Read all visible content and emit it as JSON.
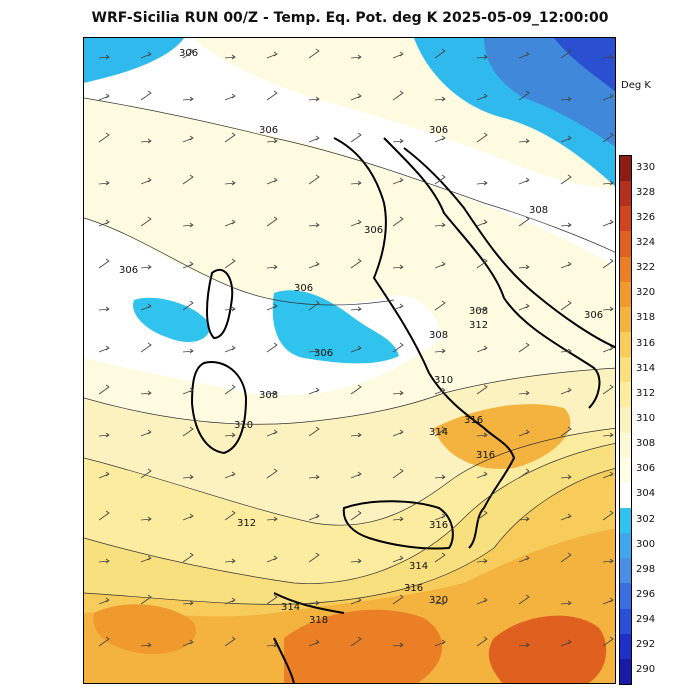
{
  "title": "WRF-Sicilia RUN 00/Z - Temp. Eq. Pot. deg K 2025-05-09_12:00:00",
  "colorbar": {
    "units": "Deg K",
    "ticks": [
      "290",
      "292",
      "294",
      "296",
      "298",
      "300",
      "302",
      "304",
      "306",
      "308",
      "310",
      "312",
      "314",
      "316",
      "318",
      "320",
      "322",
      "324",
      "326",
      "328",
      "330"
    ],
    "colors": [
      "#1a1aa8",
      "#1f2fc8",
      "#2a4fd8",
      "#3a6fe0",
      "#4a8fe6",
      "#3fa8ea",
      "#2fc3ee",
      "#ffffff",
      "#ffffe8",
      "#fdf8d6",
      "#fcf2bf",
      "#fbec9f",
      "#f9e07f",
      "#f7cc5a",
      "#f4b23e",
      "#f09a2e",
      "#eb7f25",
      "#e06020",
      "#cf4520",
      "#b3301e",
      "#8c1d14"
    ]
  },
  "contour_labels": [
    "306",
    "306",
    "306",
    "306",
    "306",
    "306",
    "306",
    "306",
    "308",
    "308",
    "308",
    "308",
    "310",
    "310",
    "312",
    "312",
    "314",
    "314",
    "314",
    "316",
    "316",
    "316",
    "316",
    "318",
    "320"
  ]
}
